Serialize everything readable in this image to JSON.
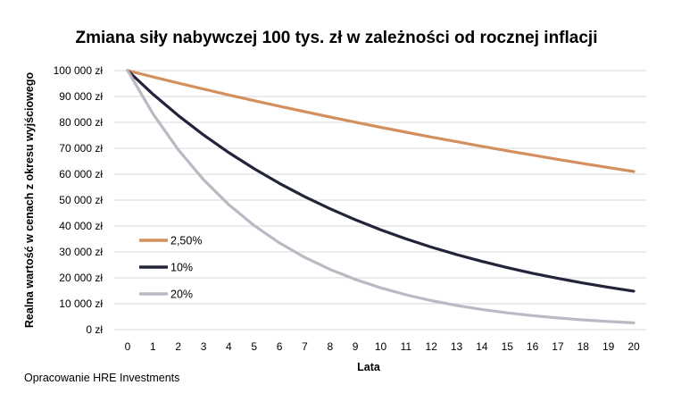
{
  "chart_data": {
    "type": "line",
    "title": "Zmiana siły nabywczej 100 tys. zł w zależności od rocznej inflacji",
    "xlabel": "Lata",
    "ylabel": "Realna wartość w cenach z okresu wyjściowego",
    "source": "Opracowanie HRE Investments",
    "x": [
      0,
      1,
      2,
      3,
      4,
      5,
      6,
      7,
      8,
      9,
      10,
      11,
      12,
      13,
      14,
      15,
      16,
      17,
      18,
      19,
      20
    ],
    "ylim": [
      0,
      100000
    ],
    "yticks": [
      0,
      10000,
      20000,
      30000,
      40000,
      50000,
      60000,
      70000,
      80000,
      90000,
      100000
    ],
    "ytick_labels": [
      "0 zł",
      "10 000 zł",
      "20 000 zł",
      "30 000 zł",
      "40 000 zł",
      "50 000 zł",
      "60 000 zł",
      "70 000 zł",
      "80 000 zł",
      "90 000 zł",
      "100 000 zł"
    ],
    "grid": true,
    "legend_position": "center-left",
    "series": [
      {
        "name": "2,50%",
        "color": "#D38F5D",
        "values": [
          100000,
          97561,
          95181,
          92860,
          90595,
          88385,
          86230,
          84127,
          82075,
          80073,
          78120,
          76214,
          74356,
          72542,
          70773,
          69047,
          67363,
          65720,
          64117,
          62553,
          61027
        ]
      },
      {
        "name": "10%",
        "color": "#22253A",
        "values": [
          100000,
          90909,
          82645,
          75131,
          68301,
          62092,
          56447,
          51316,
          46651,
          42410,
          38554,
          35049,
          31863,
          28966,
          26333,
          23939,
          21763,
          19784,
          17986,
          16351,
          14864
        ]
      },
      {
        "name": "20%",
        "color": "#BDB8C4",
        "values": [
          100000,
          83333,
          69444,
          57870,
          48225,
          40188,
          33490,
          27908,
          23257,
          19381,
          16151,
          13459,
          11216,
          9346,
          7789,
          6491,
          5409,
          4507,
          3756,
          3130,
          2608
        ]
      }
    ]
  }
}
